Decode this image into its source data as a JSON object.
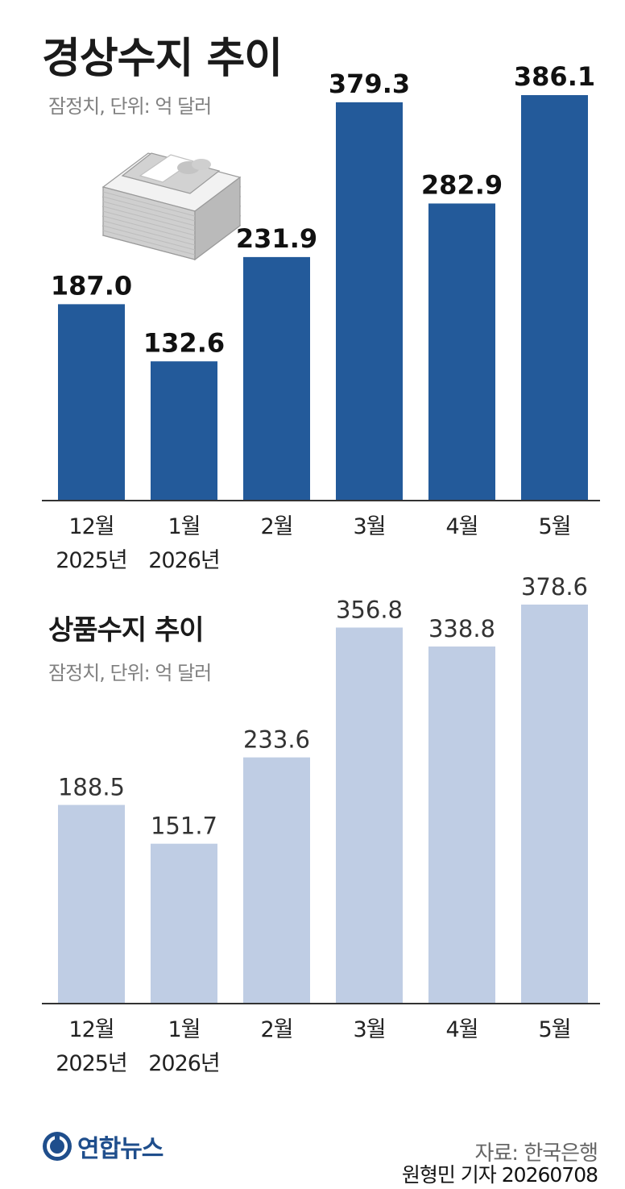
{
  "chart_data": [
    {
      "type": "bar",
      "title": "경상수지 추이",
      "subtitle": "잠정치, 단위: 억 달러",
      "categories": [
        [
          "12월",
          "2025년"
        ],
        [
          "1월",
          "2026년"
        ],
        [
          "2월"
        ],
        [
          "3월"
        ],
        [
          "4월"
        ],
        [
          "5월"
        ]
      ],
      "values": [
        187.0,
        132.6,
        231.9,
        379.3,
        282.9,
        386.1
      ],
      "value_labels": [
        "187.0",
        "132.6",
        "231.9",
        "379.3",
        "282.9",
        "386.1"
      ],
      "bar_color": "#235a9a",
      "grid": false
    },
    {
      "type": "bar",
      "title": "상품수지 추이",
      "subtitle": "잠정치, 단위: 억 달러",
      "categories": [
        [
          "12월",
          "2025년"
        ],
        [
          "1월",
          "2026년"
        ],
        [
          "2월"
        ],
        [
          "3월"
        ],
        [
          "4월"
        ],
        [
          "5월"
        ]
      ],
      "values": [
        188.5,
        151.7,
        233.6,
        356.8,
        338.8,
        378.6
      ],
      "value_labels": [
        "188.5",
        "151.7",
        "233.6",
        "356.8",
        "338.8",
        "378.6"
      ],
      "bar_color": "#bfcde4",
      "grid": false
    }
  ],
  "footer": {
    "logo_text": "연합뉴스",
    "logo_color": "#1f4e8c",
    "source": "자료: 한국은행",
    "credit": "원형민 기자 20260708"
  },
  "icons": [
    "money-stack-icon",
    "yonhap-logo-icon"
  ]
}
